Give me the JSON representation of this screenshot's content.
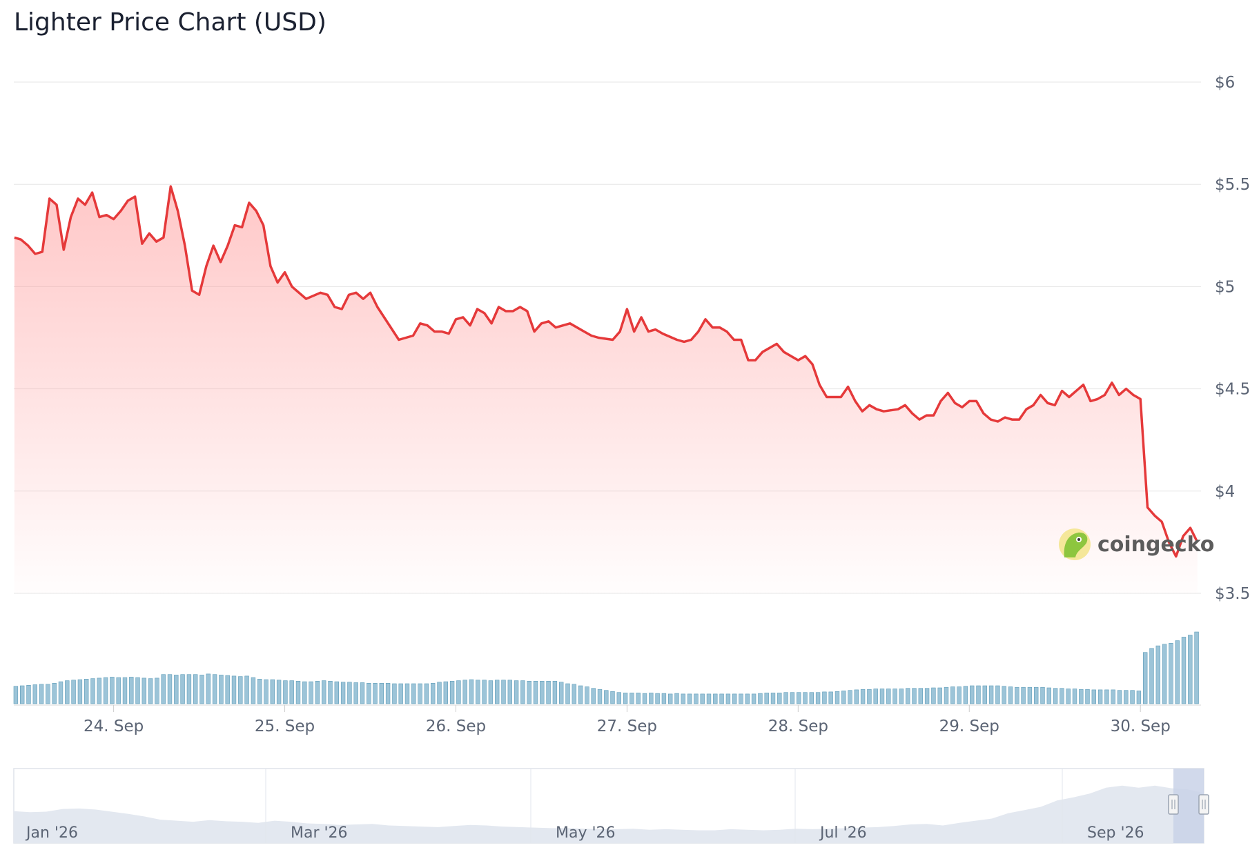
{
  "title": "Lighter Price Chart (USD)",
  "watermark": "coingecko",
  "colors": {
    "price_line": "#e5393a",
    "area_fill": "#ff9a9a",
    "volume": "#9cc4d8",
    "volume_stroke": "#5f9db9",
    "grid": "#e6e6e6",
    "navigator_fill": "#e3e8f0",
    "navigator_window": "#c9d2e8"
  },
  "chart_data": {
    "type": "line",
    "title": "Lighter Price Chart (USD)",
    "ylabel": "",
    "xlabel": "",
    "ylim": [
      3.5,
      6
    ],
    "y_ticks": [
      {
        "value": 6,
        "label": "$6"
      },
      {
        "value": 5.5,
        "label": "$5.5"
      },
      {
        "value": 5,
        "label": "$5"
      },
      {
        "value": 4.5,
        "label": "$4.5"
      },
      {
        "value": 4,
        "label": "$4"
      },
      {
        "value": 3.5,
        "label": "$3.5"
      }
    ],
    "xlim": [
      "2026-09-23T10:00",
      "2026-09-30T08:30"
    ],
    "x_ticks": [
      {
        "value": "2026-09-24T00:00",
        "label": "24. Sep"
      },
      {
        "value": "2026-09-25T00:00",
        "label": "25. Sep"
      },
      {
        "value": "2026-09-26T00:00",
        "label": "26. Sep"
      },
      {
        "value": "2026-09-27T00:00",
        "label": "27. Sep"
      },
      {
        "value": "2026-09-28T00:00",
        "label": "28. Sep"
      },
      {
        "value": "2026-09-29T00:00",
        "label": "29. Sep"
      },
      {
        "value": "2026-09-30T00:00",
        "label": "30. Sep"
      }
    ],
    "price_series": {
      "x": [
        "2026-09-23T10:05",
        "2026-09-23T11:00",
        "2026-09-23T12:00",
        "2026-09-23T13:00",
        "2026-09-23T14:00",
        "2026-09-23T15:00",
        "2026-09-23T16:00",
        "2026-09-23T17:00",
        "2026-09-23T18:00",
        "2026-09-23T19:00",
        "2026-09-23T20:00",
        "2026-09-23T21:00",
        "2026-09-23T22:00",
        "2026-09-23T23:00",
        "2026-09-24T00:00",
        "2026-09-24T01:00",
        "2026-09-24T02:00",
        "2026-09-24T03:00",
        "2026-09-24T04:00",
        "2026-09-24T05:00",
        "2026-09-24T06:00",
        "2026-09-24T07:00",
        "2026-09-24T08:00",
        "2026-09-24T09:00",
        "2026-09-24T10:00",
        "2026-09-24T11:00",
        "2026-09-24T12:00",
        "2026-09-24T13:00",
        "2026-09-24T14:00",
        "2026-09-24T15:00",
        "2026-09-24T16:00",
        "2026-09-24T17:00",
        "2026-09-24T18:00",
        "2026-09-24T19:00",
        "2026-09-24T20:00",
        "2026-09-24T21:00",
        "2026-09-24T22:00",
        "2026-09-24T23:00",
        "2026-09-25T00:00",
        "2026-09-25T01:00",
        "2026-09-25T03:00",
        "2026-09-25T05:00",
        "2026-09-25T06:00",
        "2026-09-25T07:00",
        "2026-09-25T08:00",
        "2026-09-25T09:00",
        "2026-09-25T10:00",
        "2026-09-25T11:00",
        "2026-09-25T12:00",
        "2026-09-25T13:00",
        "2026-09-25T16:00",
        "2026-09-25T18:00",
        "2026-09-25T19:00",
        "2026-09-25T20:00",
        "2026-09-25T21:00",
        "2026-09-25T22:00",
        "2026-09-25T23:00",
        "2026-09-26T00:00",
        "2026-09-26T01:00",
        "2026-09-26T02:00",
        "2026-09-26T03:00",
        "2026-09-26T04:00",
        "2026-09-26T05:00",
        "2026-09-26T06:00",
        "2026-09-26T07:00",
        "2026-09-26T08:00",
        "2026-09-26T09:00",
        "2026-09-26T10:00",
        "2026-09-26T11:00",
        "2026-09-26T12:00",
        "2026-09-26T13:00",
        "2026-09-26T14:00",
        "2026-09-26T16:00",
        "2026-09-26T18:00",
        "2026-09-26T19:00",
        "2026-09-26T20:00",
        "2026-09-26T22:00",
        "2026-09-26T23:00",
        "2026-09-27T00:00",
        "2026-09-27T01:00",
        "2026-09-27T02:00",
        "2026-09-27T03:00",
        "2026-09-27T04:00",
        "2026-09-27T05:00",
        "2026-09-27T07:00",
        "2026-09-27T08:00",
        "2026-09-27T09:00",
        "2026-09-27T10:00",
        "2026-09-27T11:00",
        "2026-09-27T12:00",
        "2026-09-27T13:00",
        "2026-09-27T14:00",
        "2026-09-27T15:00",
        "2026-09-27T16:00",
        "2026-09-27T17:00",
        "2026-09-27T18:00",
        "2026-09-27T19:00",
        "2026-09-27T21:00",
        "2026-09-27T22:00",
        "2026-09-28T00:00",
        "2026-09-28T01:00",
        "2026-09-28T02:00",
        "2026-09-28T03:00",
        "2026-09-28T04:00",
        "2026-09-28T05:00",
        "2026-09-28T06:00",
        "2026-09-28T07:00",
        "2026-09-28T08:00",
        "2026-09-28T09:00",
        "2026-09-28T10:00",
        "2026-09-28T11:00",
        "2026-09-28T12:00",
        "2026-09-28T14:00",
        "2026-09-28T15:00",
        "2026-09-28T16:00",
        "2026-09-28T17:00",
        "2026-09-28T18:00",
        "2026-09-28T19:00",
        "2026-09-28T20:00",
        "2026-09-28T21:00",
        "2026-09-28T22:00",
        "2026-09-28T23:00",
        "2026-09-29T00:00",
        "2026-09-29T01:00",
        "2026-09-29T02:00",
        "2026-09-29T03:00",
        "2026-09-29T04:00",
        "2026-09-29T05:00",
        "2026-09-29T06:00",
        "2026-09-29T07:00",
        "2026-09-29T08:00",
        "2026-09-29T09:00",
        "2026-09-29T10:00",
        "2026-09-29T11:00",
        "2026-09-29T12:00",
        "2026-09-29T13:00",
        "2026-09-29T14:00",
        "2026-09-29T15:00",
        "2026-09-29T16:00",
        "2026-09-29T17:00",
        "2026-09-29T18:00",
        "2026-09-29T19:00",
        "2026-09-29T20:00",
        "2026-09-29T21:00",
        "2026-09-29T22:00",
        "2026-09-29T23:00",
        "2026-09-30T00:00",
        "2026-09-30T01:00",
        "2026-09-30T02:00",
        "2026-09-30T03:00",
        "2026-09-30T04:00",
        "2026-09-30T05:00",
        "2026-09-30T06:00",
        "2026-09-30T07:00",
        "2026-09-30T08:00"
      ],
      "y": [
        5.24,
        5.23,
        5.2,
        5.16,
        5.17,
        5.43,
        5.4,
        5.18,
        5.34,
        5.43,
        5.4,
        5.46,
        5.34,
        5.35,
        5.33,
        5.37,
        5.42,
        5.44,
        5.21,
        5.26,
        5.22,
        5.24,
        5.49,
        5.37,
        5.2,
        4.98,
        4.96,
        5.1,
        5.2,
        5.12,
        5.2,
        5.3,
        5.29,
        5.41,
        5.37,
        5.3,
        5.1,
        5.02,
        5.07,
        5.0,
        4.94,
        4.97,
        4.96,
        4.9,
        4.89,
        4.96,
        4.97,
        4.94,
        4.97,
        4.9,
        4.74,
        4.76,
        4.82,
        4.81,
        4.78,
        4.78,
        4.77,
        4.84,
        4.85,
        4.81,
        4.89,
        4.87,
        4.82,
        4.9,
        4.88,
        4.88,
        4.9,
        4.88,
        4.78,
        4.82,
        4.83,
        4.8,
        4.82,
        4.78,
        4.76,
        4.75,
        4.74,
        4.78,
        4.89,
        4.78,
        4.85,
        4.78,
        4.79,
        4.77,
        4.74,
        4.73,
        4.74,
        4.78,
        4.84,
        4.8,
        4.8,
        4.78,
        4.74,
        4.74,
        4.64,
        4.64,
        4.68,
        4.72,
        4.68,
        4.64,
        4.66,
        4.62,
        4.52,
        4.46,
        4.46,
        4.46,
        4.51,
        4.44,
        4.39,
        4.42,
        4.4,
        4.39,
        4.4,
        4.42,
        4.38,
        4.35,
        4.37,
        4.37,
        4.44,
        4.48,
        4.43,
        4.41,
        4.44,
        4.44,
        4.38,
        4.35,
        4.34,
        4.36,
        4.35,
        4.35,
        4.4,
        4.42,
        4.47,
        4.43,
        4.42,
        4.49,
        4.46,
        4.49,
        4.52,
        4.44,
        4.45,
        4.47,
        4.53,
        4.47,
        4.5,
        4.47,
        4.45,
        3.92,
        3.88,
        3.85,
        3.75,
        3.68,
        3.78,
        3.82,
        3.75
      ]
    },
    "volume_series": {
      "values": [
        34,
        35,
        36,
        37,
        38,
        38,
        40,
        43,
        45,
        46,
        47,
        48,
        49,
        50,
        51,
        52,
        51,
        51,
        52,
        51,
        50,
        49,
        50,
        57,
        57,
        56,
        57,
        57,
        57,
        56,
        58,
        57,
        56,
        55,
        54,
        53,
        54,
        51,
        48,
        47,
        47,
        46,
        45,
        45,
        44,
        43,
        43,
        44,
        45,
        44,
        43,
        42,
        42,
        41,
        41,
        40,
        40,
        40,
        40,
        39,
        39,
        39,
        39,
        39,
        39,
        40,
        42,
        43,
        44,
        45,
        46,
        47,
        46,
        46,
        45,
        46,
        46,
        46,
        45,
        45,
        44,
        44,
        44,
        44,
        44,
        42,
        39,
        38,
        35,
        33,
        30,
        28,
        26,
        24,
        22,
        21,
        21,
        21,
        20,
        21,
        20,
        20,
        19,
        20,
        19,
        19,
        19,
        19,
        19,
        19,
        19,
        19,
        19,
        19,
        19,
        19,
        20,
        21,
        21,
        21,
        22,
        22,
        22,
        22,
        22,
        22,
        23,
        23,
        24,
        25,
        26,
        27,
        28,
        28,
        29,
        29,
        29,
        29,
        29,
        30,
        30,
        30,
        30,
        31,
        31,
        32,
        33,
        33,
        34,
        35,
        35,
        35,
        35,
        35,
        34,
        33,
        32,
        32,
        32,
        32,
        32,
        31,
        30,
        30,
        29,
        29,
        28,
        28,
        27,
        27,
        27,
        27,
        26,
        26,
        26,
        25,
        100,
        108,
        113,
        116,
        118,
        123,
        130,
        134,
        140
      ]
    },
    "navigator": {
      "ticks": [
        "Jan '26",
        "Mar '26",
        "May '26",
        "Jul '26",
        "Sep '26"
      ],
      "values": [
        6.0,
        5.8,
        5.9,
        6.4,
        6.5,
        6.3,
        5.9,
        5.5,
        5.0,
        4.4,
        4.2,
        4.0,
        4.3,
        4.1,
        4.0,
        3.8,
        4.2,
        4.0,
        3.7,
        3.6,
        3.4,
        3.5,
        3.6,
        3.3,
        3.2,
        3.1,
        3.0,
        3.2,
        3.4,
        3.3,
        3.1,
        3.0,
        2.9,
        2.8,
        2.8,
        2.7,
        2.6,
        2.6,
        2.7,
        2.5,
        2.6,
        2.5,
        2.4,
        2.4,
        2.6,
        2.5,
        2.4,
        2.5,
        2.7,
        2.6,
        2.7,
        2.8,
        2.9,
        3.0,
        3.2,
        3.5,
        3.6,
        3.3,
        3.8,
        4.2,
        4.6,
        5.6,
        6.2,
        6.8,
        8.0,
        8.6,
        9.3,
        10.4,
        10.8,
        10.4,
        10.8,
        10.3,
        10.1,
        9.4
      ]
    }
  }
}
